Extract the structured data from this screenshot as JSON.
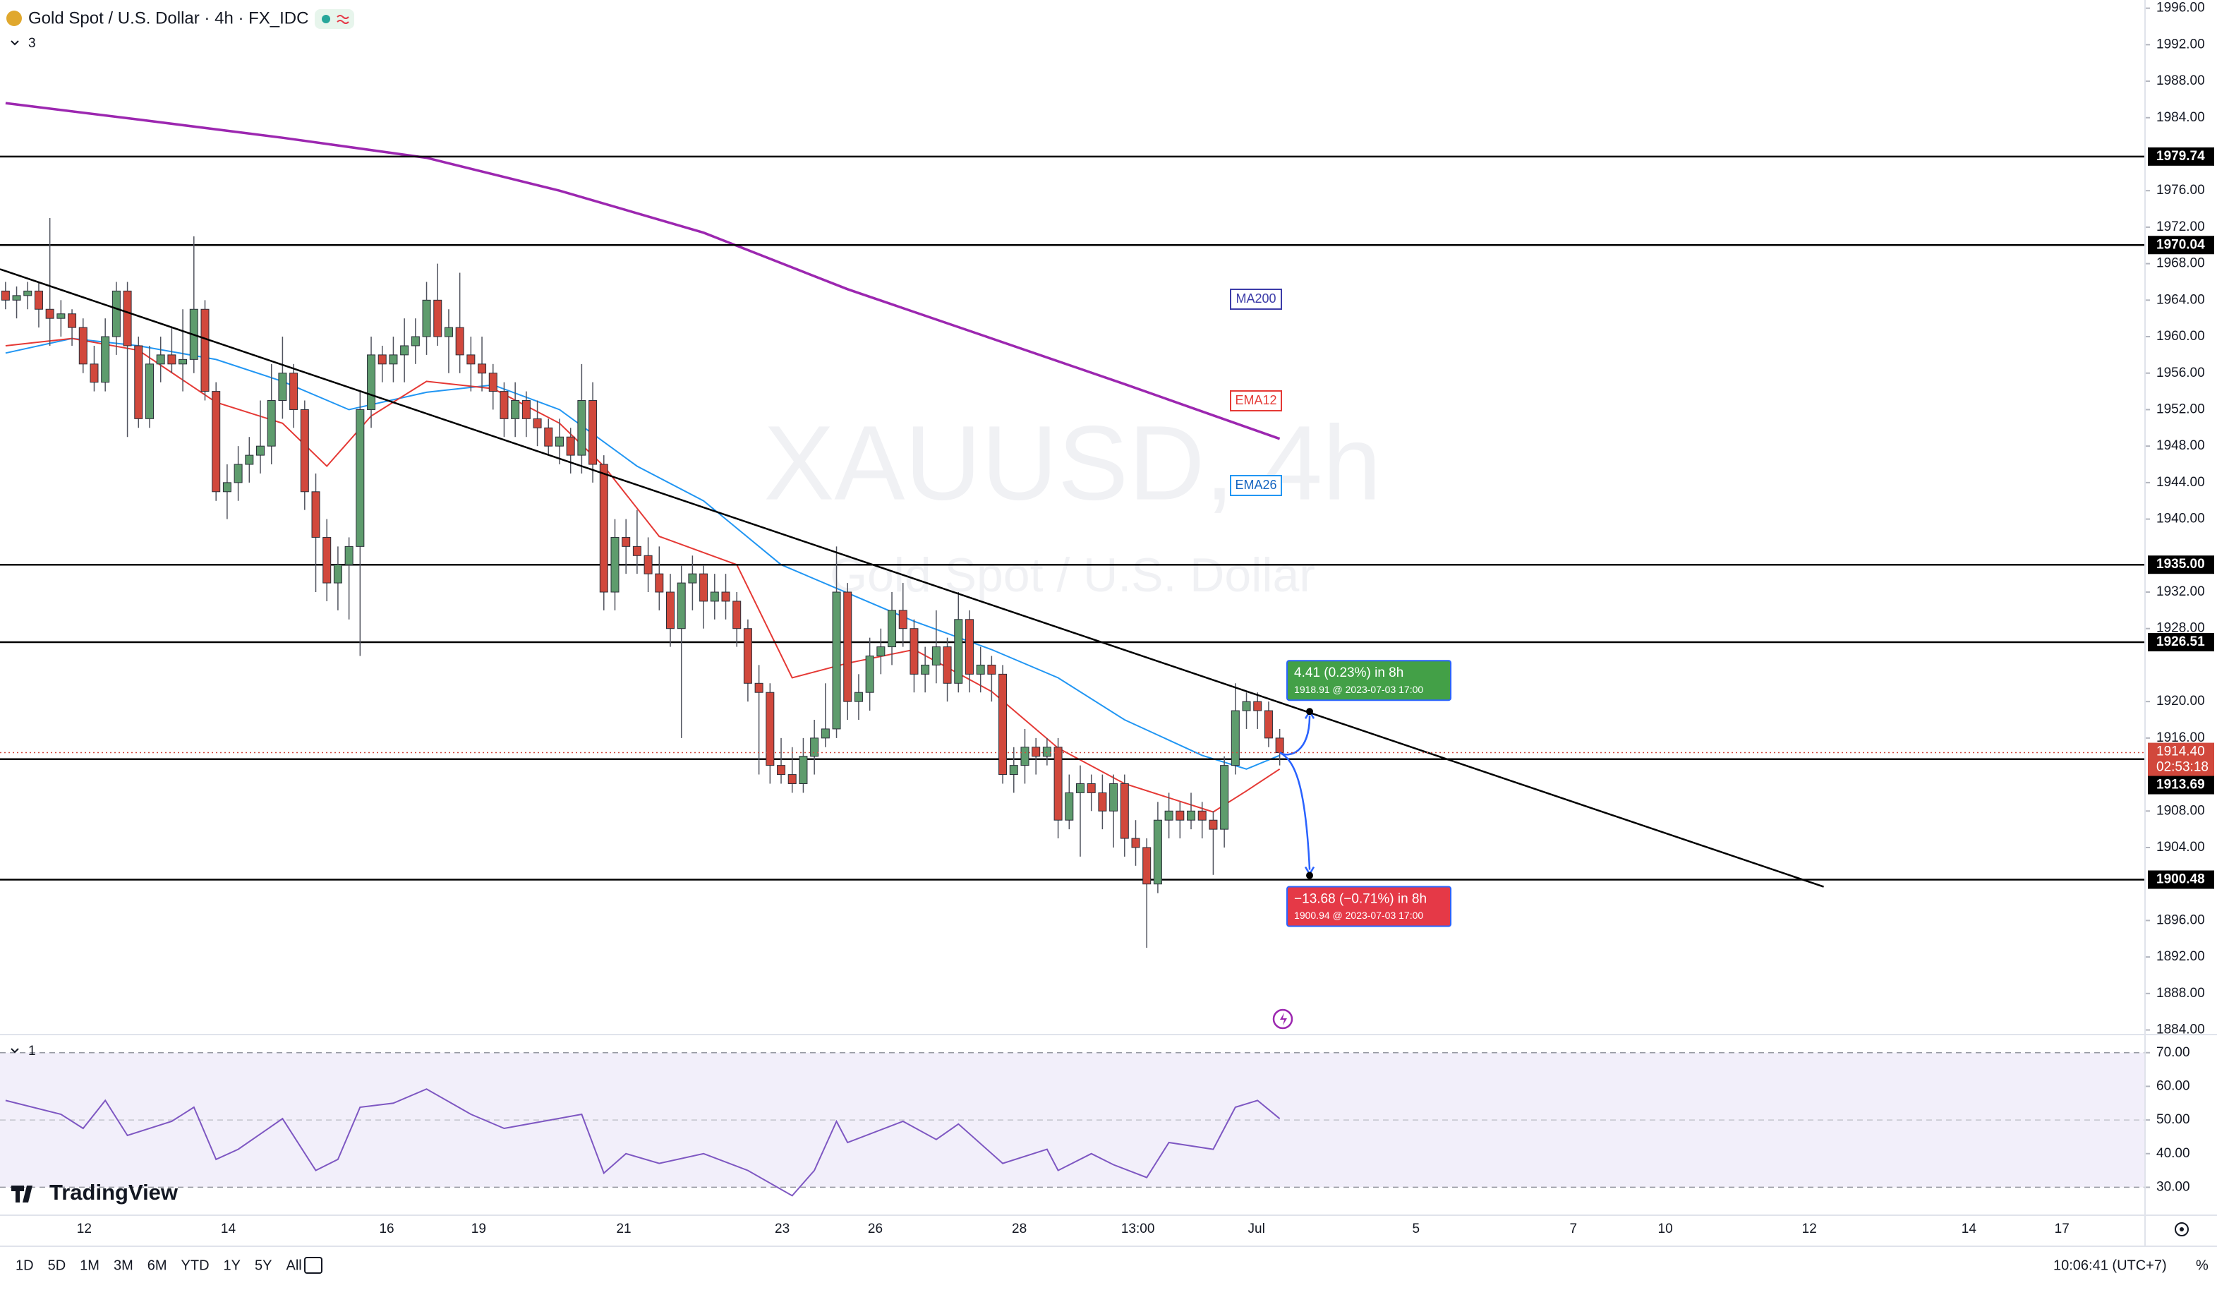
{
  "header": {
    "symbol": "Gold Spot / U.S. Dollar · 4h · FX_IDC",
    "indicator_count": 3,
    "rsi_pane_count": 1,
    "watermark": "XAUUSD, 4h",
    "watermark_sub": "Gold Spot / U.S. Dollar",
    "brand": "TradingView"
  },
  "chart_data": {
    "type": "candlestick",
    "xlim": [
      -0.5,
      193.1
    ],
    "ylim": [
      1883.5,
      1996.9
    ],
    "up_color": "#5e9c6d",
    "down_color": "#d1483c",
    "candles": [
      [
        1965,
        1966,
        1963,
        1964
      ],
      [
        1964,
        1965.5,
        1962,
        1964.5
      ],
      [
        1964.5,
        1966,
        1963,
        1965
      ],
      [
        1965,
        1966,
        1961,
        1963
      ],
      [
        1963,
        1973,
        1959,
        1962
      ],
      [
        1962,
        1964,
        1960,
        1962.5
      ],
      [
        1962.5,
        1963,
        1959,
        1961
      ],
      [
        1961,
        1962,
        1956,
        1957
      ],
      [
        1957,
        1959,
        1954,
        1955
      ],
      [
        1955,
        1962,
        1954,
        1960
      ],
      [
        1960,
        1966,
        1958,
        1965
      ],
      [
        1965,
        1966,
        1949,
        1959
      ],
      [
        1959,
        1960,
        1950,
        1951
      ],
      [
        1951,
        1959,
        1950,
        1957
      ],
      [
        1957,
        1960,
        1955,
        1958
      ],
      [
        1958,
        1961,
        1956,
        1957
      ],
      [
        1957,
        1963,
        1954,
        1957.5
      ],
      [
        1957.5,
        1971,
        1956,
        1963
      ],
      [
        1963,
        1964,
        1953,
        1954
      ],
      [
        1954,
        1955,
        1942,
        1943
      ],
      [
        1943,
        1946,
        1940,
        1944
      ],
      [
        1944,
        1948,
        1942,
        1946
      ],
      [
        1946,
        1949,
        1944,
        1947
      ],
      [
        1947,
        1953,
        1945,
        1948
      ],
      [
        1948,
        1957,
        1946,
        1953
      ],
      [
        1953,
        1960,
        1951,
        1956
      ],
      [
        1956,
        1957,
        1950,
        1952
      ],
      [
        1952,
        1953,
        1941,
        1943
      ],
      [
        1943,
        1945,
        1932,
        1938
      ],
      [
        1938,
        1940,
        1931,
        1933
      ],
      [
        1933,
        1937,
        1930,
        1935
      ],
      [
        1935,
        1938,
        1929,
        1937
      ],
      [
        1937,
        1954,
        1925,
        1952
      ],
      [
        1952,
        1960,
        1950,
        1958
      ],
      [
        1958,
        1959,
        1955,
        1957
      ],
      [
        1957,
        1960,
        1955,
        1958
      ],
      [
        1958,
        1962,
        1955,
        1959
      ],
      [
        1959,
        1962,
        1957,
        1960
      ],
      [
        1960,
        1966,
        1958,
        1964
      ],
      [
        1964,
        1968,
        1959,
        1960
      ],
      [
        1960,
        1963,
        1956,
        1961
      ],
      [
        1961,
        1967,
        1956,
        1958
      ],
      [
        1958,
        1960,
        1954,
        1957
      ],
      [
        1957,
        1960,
        1954,
        1956
      ],
      [
        1956,
        1957,
        1952,
        1954
      ],
      [
        1954,
        1955,
        1949,
        1951
      ],
      [
        1951,
        1955,
        1949,
        1953
      ],
      [
        1953,
        1954,
        1949,
        1951
      ],
      [
        1951,
        1953,
        1948,
        1950
      ],
      [
        1950,
        1951,
        1947,
        1948
      ],
      [
        1948,
        1951,
        1946,
        1949
      ],
      [
        1949,
        1950,
        1945,
        1947
      ],
      [
        1947,
        1957,
        1945,
        1953
      ],
      [
        1953,
        1955,
        1944,
        1946
      ],
      [
        1946,
        1947,
        1930,
        1932
      ],
      [
        1932,
        1940,
        1930,
        1938
      ],
      [
        1938,
        1940,
        1934,
        1937
      ],
      [
        1937,
        1941,
        1934,
        1936
      ],
      [
        1936,
        1938,
        1932,
        1934
      ],
      [
        1934,
        1937,
        1930,
        1932
      ],
      [
        1932,
        1934,
        1926,
        1928
      ],
      [
        1928,
        1935,
        1916,
        1933
      ],
      [
        1933,
        1936,
        1930,
        1934
      ],
      [
        1934,
        1935,
        1928,
        1931
      ],
      [
        1931,
        1934,
        1929,
        1932
      ],
      [
        1932,
        1934,
        1929,
        1931
      ],
      [
        1931,
        1932,
        1926,
        1928
      ],
      [
        1928,
        1929,
        1920,
        1922
      ],
      [
        1922,
        1924,
        1912,
        1921
      ],
      [
        1921,
        1922,
        1911,
        1913
      ],
      [
        1913,
        1916,
        1911,
        1912
      ],
      [
        1912,
        1915,
        1910,
        1911
      ],
      [
        1911,
        1916,
        1910,
        1914
      ],
      [
        1914,
        1918,
        1912,
        1916
      ],
      [
        1916,
        1922,
        1915,
        1917
      ],
      [
        1917,
        1937,
        1916,
        1932
      ],
      [
        1932,
        1933,
        1918,
        1920
      ],
      [
        1920,
        1923,
        1918,
        1921
      ],
      [
        1921,
        1927,
        1919,
        1925
      ],
      [
        1925,
        1928,
        1923,
        1926
      ],
      [
        1926,
        1932,
        1924,
        1930
      ],
      [
        1930,
        1933,
        1926,
        1928
      ],
      [
        1928,
        1929,
        1921,
        1923
      ],
      [
        1923,
        1926,
        1921,
        1924
      ],
      [
        1924,
        1930,
        1922,
        1926
      ],
      [
        1926,
        1927,
        1920,
        1922
      ],
      [
        1922,
        1932,
        1921,
        1929
      ],
      [
        1929,
        1930,
        1921,
        1923
      ],
      [
        1923,
        1926,
        1921,
        1924
      ],
      [
        1924,
        1925,
        1920,
        1923
      ],
      [
        1923,
        1924,
        1911,
        1912
      ],
      [
        1912,
        1915,
        1910,
        1913
      ],
      [
        1913,
        1917,
        1911,
        1915
      ],
      [
        1915,
        1916,
        1912,
        1914
      ],
      [
        1914,
        1916,
        1913,
        1915
      ],
      [
        1915,
        1916,
        1905,
        1907
      ],
      [
        1907,
        1912,
        1906,
        1910
      ],
      [
        1910,
        1913,
        1903,
        1911
      ],
      [
        1911,
        1912,
        1908,
        1910
      ],
      [
        1910,
        1912,
        1906,
        1908
      ],
      [
        1908,
        1912,
        1904,
        1911
      ],
      [
        1911,
        1912,
        1903,
        1905
      ],
      [
        1905,
        1907,
        1902,
        1904
      ],
      [
        1904,
        1905,
        1893,
        1900
      ],
      [
        1900,
        1909,
        1899,
        1907
      ],
      [
        1907,
        1910,
        1905,
        1908
      ],
      [
        1908,
        1909,
        1905,
        1907
      ],
      [
        1907,
        1910,
        1906,
        1908
      ],
      [
        1908,
        1909,
        1905,
        1907
      ],
      [
        1907,
        1908,
        1901,
        1906
      ],
      [
        1906,
        1914,
        1904,
        1913
      ],
      [
        1913,
        1922,
        1912,
        1919
      ],
      [
        1919,
        1921,
        1917,
        1920
      ],
      [
        1920,
        1921,
        1917,
        1919
      ],
      [
        1919,
        1920,
        1915,
        1916
      ],
      [
        1916,
        1917,
        1913,
        1914.4
      ]
    ],
    "ma200": {
      "name": "MA200",
      "color": "#9c27b0",
      "x": [
        0,
        12,
        25,
        38,
        50,
        63,
        76,
        89,
        101,
        115
      ],
      "values": [
        1985.6,
        1983.8,
        1981.8,
        1979.6,
        1976,
        1971.4,
        1965.2,
        1959.8,
        1954.8,
        1948.8
      ]
    },
    "ema12": {
      "name": "EMA12",
      "color": "#e53935",
      "x": [
        0,
        6,
        12,
        19,
        25,
        29,
        33,
        38,
        44,
        50,
        54,
        59,
        66,
        71,
        76,
        82,
        89,
        95,
        101,
        109,
        112,
        115
      ],
      "values": [
        1959,
        1959.8,
        1958.5,
        1952.8,
        1950.5,
        1945.8,
        1951.3,
        1955.1,
        1954.3,
        1950.5,
        1945.8,
        1938.1,
        1935,
        1922.6,
        1924.2,
        1925.7,
        1921.1,
        1914.9,
        1911,
        1907.9,
        1910.2,
        1912.6
      ]
    },
    "ema26": {
      "name": "EMA26",
      "color": "#2196f3",
      "x": [
        0,
        6,
        12,
        19,
        25,
        31,
        38,
        44,
        50,
        57,
        63,
        70,
        76,
        82,
        89,
        95,
        101,
        108,
        112,
        115
      ],
      "values": [
        1958.2,
        1959.8,
        1959,
        1957.5,
        1955.1,
        1952,
        1953.9,
        1954.7,
        1952,
        1945.8,
        1942,
        1935,
        1931.9,
        1928.8,
        1925.7,
        1922.6,
        1918,
        1914.1,
        1912.6,
        1914.1
      ]
    },
    "trendline": {
      "x": [
        -0.5,
        164.1
      ],
      "values": [
        1967.4,
        1899.7
      ]
    },
    "levels": [
      1979.74,
      1970.04,
      {
        "value": 1935,
        "label": "1935.00"
      },
      1926.51,
      1913.69,
      1900.48
    ],
    "current_price": {
      "value": 1914.4,
      "label": "1914.40"
    },
    "countdown": "02:53:18",
    "yticks": [
      {
        "value": 1996,
        "label": "1996.00"
      },
      {
        "value": 1992,
        "label": "1992.00"
      },
      {
        "value": 1988,
        "label": "1988.00"
      },
      {
        "value": 1984,
        "label": "1984.00"
      },
      {
        "value": 1976,
        "label": "1976.00"
      },
      {
        "value": 1972,
        "label": "1972.00"
      },
      {
        "value": 1968,
        "label": "1968.00"
      },
      {
        "value": 1964,
        "label": "1964.00"
      },
      {
        "value": 1960,
        "label": "1960.00"
      },
      {
        "value": 1956,
        "label": "1956.00"
      },
      {
        "value": 1952,
        "label": "1952.00"
      },
      {
        "value": 1948,
        "label": "1948.00"
      },
      {
        "value": 1944,
        "label": "1944.00"
      },
      {
        "value": 1940,
        "label": "1940.00"
      },
      {
        "value": 1932,
        "label": "1932.00"
      },
      {
        "value": 1928,
        "label": "1928.00"
      },
      {
        "value": 1920,
        "label": "1920.00"
      },
      {
        "value": 1916,
        "label": "1916.00"
      },
      {
        "value": 1908,
        "label": "1908.00"
      },
      {
        "value": 1904,
        "label": "1904.00"
      },
      {
        "value": 1896,
        "label": "1896.00"
      },
      {
        "value": 1892,
        "label": "1892.00"
      },
      {
        "value": 1888,
        "label": "1888.00"
      },
      {
        "value": 1884,
        "label": "1884.00"
      }
    ],
    "projections": [
      {
        "x": 117.7,
        "value": 1918.91,
        "change": "4.41 (0.23%) in 8h",
        "target": "1918.91 @ 2023-07-03  17:00",
        "color": "#43a047"
      },
      {
        "x": 117.7,
        "value": 1900.94,
        "change": "−13.68 (−0.71%) in 8h",
        "target": "1900.94 @ 2023-07-03  17:00",
        "color": "#e53947"
      }
    ],
    "xticks": [
      {
        "value": 7.1,
        "label": "12"
      },
      {
        "value": 20.1,
        "label": "14"
      },
      {
        "value": 34.4,
        "label": "16"
      },
      {
        "value": 42.7,
        "label": "19"
      },
      {
        "value": 55.8,
        "label": "21"
      },
      {
        "value": 70.1,
        "label": "23"
      },
      {
        "value": 78.5,
        "label": "26"
      },
      {
        "value": 91.5,
        "label": "28"
      },
      {
        "value": 102.2,
        "label": "13:00"
      },
      {
        "value": 112.9,
        "label": "Jul"
      },
      {
        "value": 127.3,
        "label": "5"
      },
      {
        "value": 141.5,
        "label": "7"
      },
      {
        "value": 149.8,
        "label": "10"
      },
      {
        "value": 162.8,
        "label": "12"
      },
      {
        "value": 177.2,
        "label": "14"
      },
      {
        "value": 185.6,
        "label": "17"
      }
    ],
    "rsi": {
      "color": "#7e57c2",
      "ylim": [
        21.7,
        75.4
      ],
      "band": [
        30,
        70
      ],
      "midline": 50,
      "yticks": [
        {
          "value": 70,
          "label": "70.00"
        },
        {
          "value": 60,
          "label": "60.00"
        },
        {
          "value": 50,
          "label": "50.00"
        },
        {
          "value": 40,
          "label": "40.00"
        },
        {
          "value": 30,
          "label": "30.00"
        }
      ],
      "x": [
        0,
        5,
        7,
        9,
        11,
        15,
        17,
        19,
        21,
        25,
        28,
        30,
        32,
        35,
        38,
        42,
        45,
        52,
        54,
        56,
        59,
        63,
        67,
        71,
        73,
        75,
        76,
        81,
        84,
        86,
        90,
        94,
        95,
        98,
        100,
        103,
        105,
        109,
        111,
        113,
        115
      ],
      "values": [
        55.8,
        51.7,
        47.5,
        55.8,
        45.4,
        49.6,
        53.8,
        38.3,
        41.3,
        50.4,
        35,
        38.3,
        53.8,
        55,
        59.2,
        51.7,
        47.5,
        51.7,
        34.2,
        40,
        37.1,
        40,
        35,
        27.5,
        35,
        49.6,
        43.3,
        49.6,
        44.2,
        48.8,
        37.1,
        41.3,
        35,
        40,
        36.7,
        32.9,
        43.3,
        41.3,
        53.8,
        55.8,
        50.4
      ]
    }
  },
  "toolbar": {
    "ranges": [
      "1D",
      "5D",
      "1M",
      "3M",
      "6M",
      "YTD",
      "1Y",
      "5Y",
      "All"
    ],
    "clock": "10:06:41 (UTC+7)",
    "percent": "%"
  }
}
